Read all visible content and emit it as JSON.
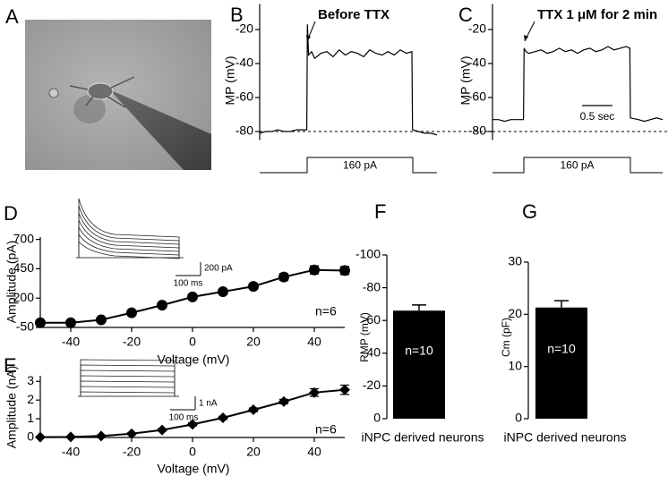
{
  "image_panel": {
    "panel_label": "A"
  },
  "chart_data": [
    {
      "type": "line",
      "panel_label": "B",
      "y_label": "MP (mV)",
      "annotation": "Before TTX",
      "stimulus_label": "160 pA",
      "xlim": [
        0,
        2.9
      ],
      "ylim": [
        -85,
        -5
      ],
      "yticks": [
        -80,
        -60,
        -40,
        -20
      ],
      "reference_line": -80,
      "x": [
        0,
        0.1,
        0.2,
        0.3,
        0.4,
        0.5,
        0.6,
        0.7,
        0.77,
        0.78,
        0.8,
        0.85,
        0.9,
        1.0,
        1.1,
        1.2,
        1.3,
        1.4,
        1.5,
        1.6,
        1.7,
        1.8,
        1.9,
        2.0,
        2.1,
        2.2,
        2.3,
        2.4,
        2.49,
        2.5,
        2.6,
        2.7,
        2.8,
        2.9
      ],
      "series": [
        {
          "color": "#000000",
          "values": [
            -81,
            -80,
            -80,
            -79,
            -80,
            -80,
            -79,
            -79,
            -79,
            -17,
            -35,
            -33,
            -37,
            -34,
            -33,
            -36,
            -32,
            -35,
            -33,
            -34,
            -36,
            -32,
            -34,
            -35,
            -33,
            -35,
            -32,
            -34,
            -33,
            -79,
            -80,
            -81,
            -81,
            -82
          ]
        }
      ]
    },
    {
      "type": "line",
      "panel_label": "C",
      "y_label": "MP (mV)",
      "annotation": "TTX 1 μM for 2 min",
      "stimulus_label": "160 pA",
      "xlim": [
        0,
        2.8
      ],
      "ylim": [
        -85,
        -5
      ],
      "yticks": [
        -80,
        -60,
        -40,
        -20
      ],
      "reference_line": -80,
      "scale_bar": {
        "value": 0.5,
        "label": "0.5 sec"
      },
      "x": [
        0,
        0.1,
        0.2,
        0.3,
        0.4,
        0.51,
        0.52,
        0.55,
        0.6,
        0.7,
        0.8,
        0.9,
        1.0,
        1.1,
        1.2,
        1.3,
        1.4,
        1.5,
        1.6,
        1.7,
        1.8,
        1.9,
        2.0,
        2.1,
        2.2,
        2.26,
        2.27,
        2.4,
        2.5,
        2.6,
        2.7,
        2.8
      ],
      "series": [
        {
          "color": "#000000",
          "values": [
            -73,
            -73,
            -74,
            -73,
            -73,
            -73,
            -31,
            -33,
            -34,
            -33,
            -32,
            -34,
            -33,
            -31,
            -33,
            -32,
            -34,
            -32,
            -31,
            -33,
            -32,
            -30,
            -32,
            -31,
            -30,
            -31,
            -72,
            -73,
            -74,
            -73,
            -72,
            -73
          ]
        }
      ]
    },
    {
      "type": "line",
      "panel_label": "D",
      "markers": "circle",
      "x_label": "Voltage (mV)",
      "y_label": "Amplitude (pA)",
      "annotation": "n=6",
      "inset_scale_labels": [
        "200 pA",
        "100 ms"
      ],
      "xlim": [
        -50,
        50
      ],
      "xticks": [
        -40,
        -20,
        0,
        20,
        40
      ],
      "ylim": [
        -50,
        720
      ],
      "yticks": [
        -50,
        200,
        450,
        700
      ],
      "x": [
        -50,
        -40,
        -30,
        -20,
        -10,
        0,
        10,
        20,
        30,
        40,
        50
      ],
      "series": [
        {
          "color": "#000000",
          "values": [
            -10,
            -10,
            15,
            75,
            140,
            210,
            255,
            300,
            380,
            440,
            435
          ],
          "errors": [
            0,
            0,
            10,
            12,
            15,
            18,
            20,
            25,
            30,
            35,
            35
          ]
        }
      ]
    },
    {
      "type": "line",
      "panel_label": "E",
      "markers": "diamond",
      "x_label": "Voltage (mV)",
      "y_label": "Amplitude (nA)",
      "annotation": "n=6",
      "inset_scale_labels": [
        "1 nA",
        "100 ms"
      ],
      "xlim": [
        -50,
        50
      ],
      "xticks": [
        -40,
        -20,
        0,
        20,
        40
      ],
      "ylim": [
        0,
        3.3
      ],
      "yticks": [
        0,
        1,
        2,
        3
      ],
      "x": [
        -50,
        -40,
        -30,
        -20,
        -10,
        0,
        10,
        20,
        30,
        40,
        50
      ],
      "series": [
        {
          "color": "#000000",
          "values": [
            0.02,
            0.03,
            0.08,
            0.2,
            0.4,
            0.7,
            1.05,
            1.48,
            1.92,
            2.4,
            2.55
          ],
          "errors": [
            0,
            0,
            0.03,
            0.05,
            0.06,
            0.08,
            0.08,
            0.1,
            0.12,
            0.2,
            0.25
          ]
        }
      ]
    },
    {
      "type": "bar",
      "panel_label": "F",
      "y_label": "RMP (mV)",
      "annotation": "n=10",
      "categories": [
        "iNPC derived neurons"
      ],
      "ylim": [
        0,
        -100
      ],
      "yticks": [
        0,
        -20,
        -40,
        -60,
        -80,
        -100
      ],
      "series": [
        {
          "color": "#000000",
          "values": [
            -66
          ],
          "errors": [
            3.5
          ]
        }
      ]
    },
    {
      "type": "bar",
      "panel_label": "G",
      "y_label": "Cm (pF)",
      "annotation": "n=10",
      "categories": [
        "iNPC derived neurons"
      ],
      "ylim": [
        0,
        30
      ],
      "yticks": [
        0,
        10,
        20,
        30
      ],
      "series": [
        {
          "color": "#000000",
          "values": [
            21.3
          ],
          "errors": [
            1.3
          ]
        }
      ]
    }
  ]
}
